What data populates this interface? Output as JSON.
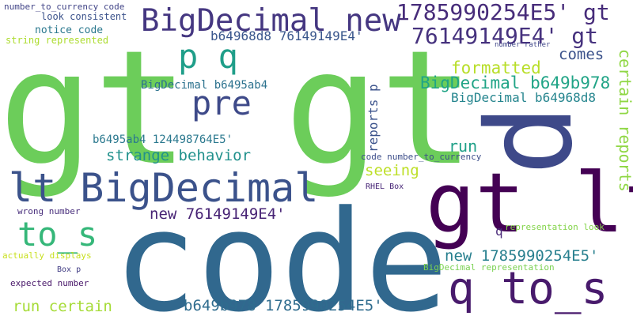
{
  "words": [
    {
      "text": "gt gt",
      "color": "#6ccd5a"
    },
    {
      "text": "code",
      "color": "#31688e"
    },
    {
      "text": "gt lt",
      "color": "#440154"
    },
    {
      "text": "lt BigDecimal",
      "color": "#3b528b"
    },
    {
      "text": "BigDecimal new",
      "color": "#453781"
    },
    {
      "text": "q to_s",
      "color": "#481a6c"
    },
    {
      "text": "p q",
      "color": "#1f9e89"
    },
    {
      "text": "to_s",
      "color": "#35b779"
    },
    {
      "text": "p",
      "color": "#3e4989"
    },
    {
      "text": "pre",
      "color": "#3e4a89"
    },
    {
      "text": "1785990254E5' gt",
      "color": "#472c7a"
    },
    {
      "text": "76149149E4' gt",
      "color": "#46327e"
    },
    {
      "text": "formatted",
      "color": "#b8de29"
    },
    {
      "text": "BigDecimal b649b978",
      "color": "#20a486"
    },
    {
      "text": "BigDecimal b64968d8",
      "color": "#25858e"
    },
    {
      "text": "certain reports",
      "color": "#8fd744"
    },
    {
      "text": "comes",
      "color": "#3b528b"
    },
    {
      "text": "b64968d8 76149149E4'",
      "color": "#39568c"
    },
    {
      "text": "BigDecimal b6495ab4",
      "color": "#2c728e"
    },
    {
      "text": "strange behavior",
      "color": "#21918c"
    },
    {
      "text": "b6495ab4 124498764E5'",
      "color": "#2a788e"
    },
    {
      "text": "run",
      "color": "#1fa088"
    },
    {
      "text": "reports p",
      "color": "#3b528b"
    },
    {
      "text": "seeing",
      "color": "#bddf26"
    },
    {
      "text": "new 76149149E4'",
      "color": "#482475"
    },
    {
      "text": "q",
      "color": "#482878"
    },
    {
      "text": "new 1785990254E5'",
      "color": "#277f8e"
    },
    {
      "text": "run certain",
      "color": "#a5db36"
    },
    {
      "text": "b649b978 1785990254E5'",
      "color": "#2f6c8e"
    },
    {
      "text": "number_to_currency code",
      "color": "#414487"
    },
    {
      "text": "look consistent",
      "color": "#3b528b"
    },
    {
      "text": "notice code",
      "color": "#2a788e"
    },
    {
      "text": "string represented",
      "color": "#addc30"
    },
    {
      "text": "number rather",
      "color": "#404688"
    },
    {
      "text": "code number_to_currency",
      "color": "#3d4e8a"
    },
    {
      "text": "RHEL Box",
      "color": "#482677"
    },
    {
      "text": "wrong number",
      "color": "#472d7b"
    },
    {
      "text": "representation look",
      "color": "#84d44b"
    },
    {
      "text": "actually displays",
      "color": "#c8e020"
    },
    {
      "text": "Box p",
      "color": "#433e85"
    },
    {
      "text": "BigDecimal representation",
      "color": "#7ad151"
    },
    {
      "text": "expected number",
      "color": "#481769"
    }
  ]
}
